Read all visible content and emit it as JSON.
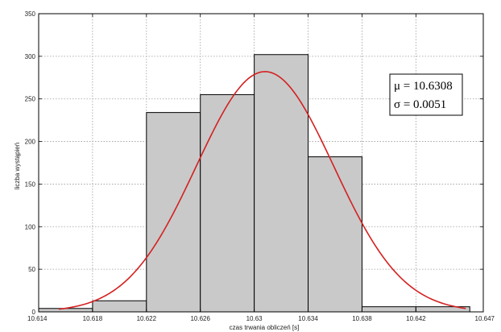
{
  "chart_data": {
    "type": "bar",
    "xlabel": "czas trwania obliczeń [s]",
    "ylabel": "liczba wystąpień",
    "xlim": [
      10.614,
      10.647
    ],
    "ylim": [
      0,
      350
    ],
    "xticks": [
      10.614,
      10.618,
      10.622,
      10.626,
      10.63,
      10.634,
      10.638,
      10.642,
      10.647
    ],
    "xtick_labels": [
      "10.614",
      "10.618",
      "10.622",
      "10.626",
      "10.63",
      "10.634",
      "10.638",
      "10.642",
      "10.647"
    ],
    "yticks": [
      0,
      50,
      100,
      150,
      200,
      250,
      300,
      350
    ],
    "ytick_labels": [
      "0",
      "50",
      "100",
      "150",
      "200",
      "250",
      "300",
      "350"
    ],
    "grid": true,
    "bins": [
      {
        "start": 10.614,
        "end": 10.618,
        "value": 4
      },
      {
        "start": 10.618,
        "end": 10.622,
        "value": 13
      },
      {
        "start": 10.622,
        "end": 10.626,
        "value": 234
      },
      {
        "start": 10.626,
        "end": 10.63,
        "value": 255
      },
      {
        "start": 10.63,
        "end": 10.634,
        "value": 302
      },
      {
        "start": 10.634,
        "end": 10.638,
        "value": 182
      },
      {
        "start": 10.638,
        "end": 10.642,
        "value": 6
      },
      {
        "start": 10.642,
        "end": 10.646,
        "value": 6
      }
    ],
    "fit_curve": {
      "mu": 10.6308,
      "sigma": 0.0051,
      "peak": 282,
      "x_start": 10.6155,
      "x_end": 10.6457,
      "color": "#d42020"
    },
    "annotation": {
      "mu_text": "μ = 10.6308",
      "sigma_text": "σ = 0.0051"
    },
    "colors": {
      "bar_fill": "#c9c9c9",
      "bar_stroke": "#000000",
      "grid": "#9a9a9a",
      "axis": "#000000"
    }
  }
}
